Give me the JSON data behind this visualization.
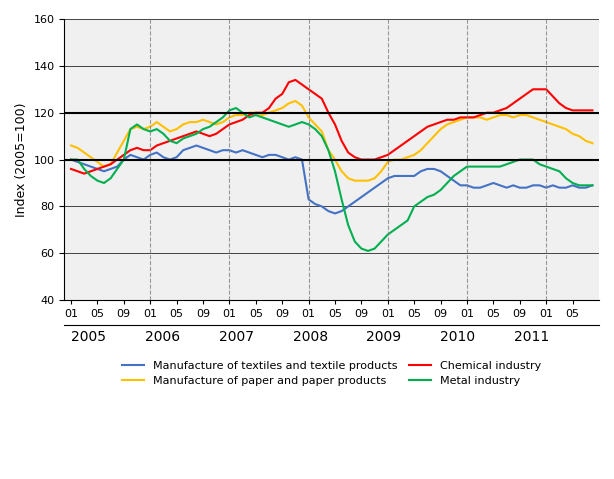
{
  "title": "",
  "ylabel": "Index (2005=100)",
  "ylim": [
    40,
    160
  ],
  "yticks": [
    40,
    60,
    80,
    100,
    120,
    140,
    160
  ],
  "background_color": "#ffffff",
  "plot_bg_color": "#f0f0f0",
  "series": {
    "textiles": {
      "label": "Manufacture of textiles and textile products",
      "color": "#4472c4",
      "data": [
        100,
        99,
        98,
        97,
        96,
        95,
        96,
        97,
        100,
        102,
        101,
        100,
        102,
        103,
        101,
        100,
        101,
        104,
        105,
        106,
        105,
        104,
        103,
        104,
        104,
        103,
        104,
        103,
        102,
        101,
        102,
        102,
        101,
        100,
        101,
        100,
        83,
        81,
        80,
        78,
        77,
        78,
        80,
        82,
        84,
        86,
        88,
        90,
        92,
        93,
        93,
        93,
        93,
        95,
        96,
        96,
        95,
        93,
        91,
        89,
        89,
        88,
        88,
        89,
        90,
        89,
        88,
        89,
        88,
        88,
        89,
        89,
        88,
        89,
        88,
        88,
        89,
        88,
        88,
        89
      ]
    },
    "paper": {
      "label": "Manufacture of paper and paper products",
      "color": "#ffc000",
      "data": [
        106,
        105,
        103,
        101,
        99,
        97,
        98,
        103,
        108,
        113,
        114,
        113,
        114,
        116,
        114,
        112,
        113,
        115,
        116,
        116,
        117,
        116,
        115,
        116,
        118,
        119,
        119,
        120,
        120,
        119,
        120,
        121,
        122,
        124,
        125,
        123,
        118,
        115,
        112,
        104,
        100,
        95,
        92,
        91,
        91,
        91,
        92,
        95,
        99,
        100,
        100,
        101,
        102,
        104,
        107,
        110,
        113,
        115,
        116,
        117,
        118,
        118,
        118,
        117,
        118,
        119,
        119,
        118,
        119,
        119,
        118,
        117,
        116,
        115,
        114,
        113,
        111,
        110,
        108,
        107
      ]
    },
    "chemical": {
      "label": "Chemical industry",
      "color": "#ff0000",
      "data": [
        96,
        95,
        94,
        95,
        96,
        97,
        98,
        100,
        102,
        104,
        105,
        104,
        104,
        106,
        107,
        108,
        109,
        110,
        111,
        112,
        111,
        110,
        111,
        113,
        115,
        116,
        117,
        119,
        120,
        120,
        122,
        126,
        128,
        133,
        134,
        132,
        130,
        128,
        126,
        120,
        115,
        108,
        103,
        101,
        100,
        100,
        100,
        101,
        102,
        104,
        106,
        108,
        110,
        112,
        114,
        115,
        116,
        117,
        117,
        118,
        118,
        118,
        119,
        120,
        120,
        121,
        122,
        124,
        126,
        128,
        130,
        130,
        130,
        127,
        124,
        122,
        121,
        121,
        121,
        121
      ]
    },
    "metal": {
      "label": "Metal industry",
      "color": "#00b050",
      "data": [
        100,
        100,
        96,
        93,
        91,
        90,
        92,
        96,
        100,
        113,
        115,
        113,
        112,
        113,
        111,
        108,
        107,
        109,
        110,
        111,
        113,
        114,
        116,
        118,
        121,
        122,
        120,
        118,
        119,
        118,
        117,
        116,
        115,
        114,
        115,
        116,
        115,
        113,
        110,
        104,
        95,
        83,
        72,
        65,
        62,
        61,
        62,
        65,
        68,
        70,
        72,
        74,
        80,
        82,
        84,
        85,
        87,
        90,
        93,
        95,
        97,
        97,
        97,
        97,
        97,
        97,
        98,
        99,
        100,
        100,
        100,
        98,
        97,
        96,
        95,
        92,
        90,
        89,
        89,
        89
      ]
    }
  },
  "x_tick_positions": [
    0,
    4,
    8,
    12,
    16,
    20,
    24,
    28,
    32,
    36,
    40,
    44,
    48,
    52,
    56,
    60,
    64,
    68,
    72,
    76
  ],
  "x_tick_labels": [
    "01",
    "05",
    "09",
    "01",
    "05",
    "09",
    "01",
    "05",
    "09",
    "01",
    "05",
    "09",
    "01",
    "05",
    "09",
    "01",
    "05",
    "09",
    "01",
    "05"
  ],
  "x_year_positions": [
    0,
    12,
    24,
    36,
    48,
    60,
    72
  ],
  "x_year_labels": [
    "2005",
    "2006",
    "2007",
    "2008",
    "2009",
    "2010",
    "2011"
  ],
  "dashed_x_positions": [
    12,
    24,
    36,
    48,
    60,
    72
  ],
  "n_months": 80
}
